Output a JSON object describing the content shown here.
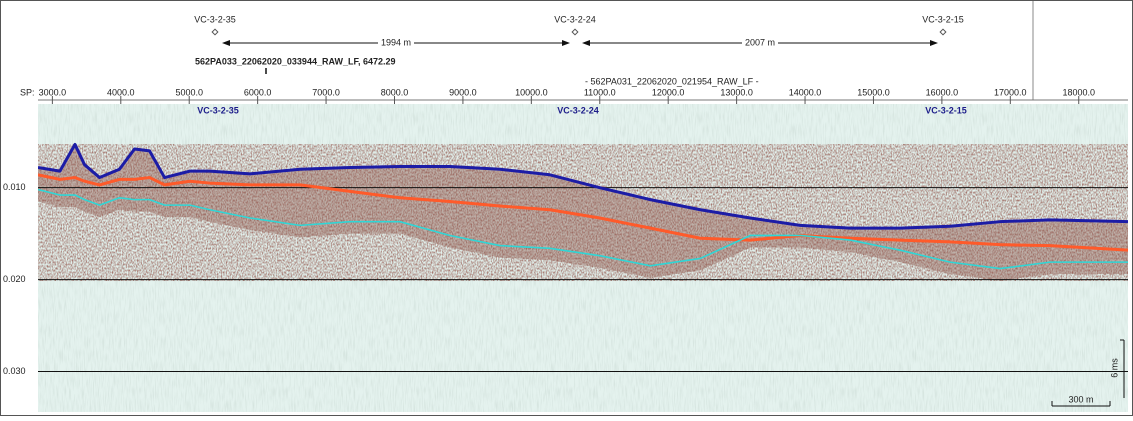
{
  "chart_data": {
    "type": "line",
    "x_label": "SP:",
    "x": [
      2790,
      3110,
      3330,
      3470,
      3690,
      3980,
      4200,
      4420,
      4640,
      5010,
      5300,
      5890,
      6620,
      7350,
      8080,
      8810,
      9540,
      10270,
      11000,
      11740,
      12470,
      13200,
      13930,
      14660,
      15390,
      16120,
      16850,
      17580,
      18720
    ],
    "series": [
      {
        "color": "#1c1ca6",
        "values": [
          0.0078,
          0.0082,
          0.0053,
          0.0075,
          0.0089,
          0.008,
          0.0058,
          0.006,
          0.0089,
          0.0082,
          0.0082,
          0.0085,
          0.008,
          0.0078,
          0.0077,
          0.0077,
          0.008,
          0.0086,
          0.01,
          0.0113,
          0.0124,
          0.0133,
          0.0141,
          0.0144,
          0.0144,
          0.0142,
          0.0137,
          0.0135,
          0.0137
        ]
      },
      {
        "color": "#ff5a2a",
        "values": [
          0.0086,
          0.0091,
          0.0089,
          0.0093,
          0.0097,
          0.0091,
          0.0091,
          0.0089,
          0.0097,
          0.0093,
          0.0095,
          0.0097,
          0.0097,
          0.0104,
          0.0111,
          0.0115,
          0.012,
          0.0124,
          0.0133,
          0.0144,
          0.0155,
          0.0157,
          0.0152,
          0.0155,
          0.0157,
          0.0159,
          0.0162,
          0.0163,
          0.0168
        ]
      },
      {
        "color": "#2fd6d6",
        "values": [
          0.0102,
          0.0108,
          0.0108,
          0.0113,
          0.0119,
          0.0111,
          0.0113,
          0.0113,
          0.0119,
          0.0119,
          0.0124,
          0.0133,
          0.0141,
          0.0137,
          0.0137,
          0.0152,
          0.0163,
          0.0166,
          0.0174,
          0.0185,
          0.0177,
          0.0152,
          0.0152,
          0.0157,
          0.0168,
          0.0181,
          0.0188,
          0.0181,
          0.0181
        ]
      }
    ],
    "xlim": [
      2790,
      18720
    ],
    "xticks": [
      {
        "value": 3000,
        "label": "3000.0"
      },
      {
        "value": 4000,
        "label": "4000.0"
      },
      {
        "value": 5000,
        "label": "5000.0"
      },
      {
        "value": 6000,
        "label": "6000.0"
      },
      {
        "value": 7000,
        "label": "7000.0"
      },
      {
        "value": 8000,
        "label": "8000.0"
      },
      {
        "value": 9000,
        "label": "9000.0"
      },
      {
        "value": 10000,
        "label": "10000.0"
      },
      {
        "value": 11000,
        "label": "11000.0"
      },
      {
        "value": 12000,
        "label": "12000.0"
      },
      {
        "value": 13000,
        "label": "13000.0"
      },
      {
        "value": 14000,
        "label": "14000.0"
      },
      {
        "value": 15000,
        "label": "15000.0"
      },
      {
        "value": 16000,
        "label": "16000.0"
      },
      {
        "value": 17000,
        "label": "17000.0"
      },
      {
        "value": 18000,
        "label": "18000.0"
      }
    ],
    "ylim": [
      0.0009,
      0.0344
    ],
    "y_inverted": true,
    "yticks": [
      {
        "value": 0.01,
        "label": "0.010"
      },
      {
        "value": 0.02,
        "label": "0.020"
      },
      {
        "value": 0.03,
        "label": "0.030"
      }
    ],
    "grid": true,
    "wells": [
      "VC-3-2-35",
      "VC-3-2-24",
      "VC-3-2-15"
    ],
    "distances": [
      "1994 m",
      "2007 m"
    ],
    "line_names": [
      "562PA033_22062020_033944_RAW_LF, 6472.29",
      "- 562PA031_22062020_021954_RAW_LF -"
    ],
    "scale_labels": [
      "6 ms",
      "300 m"
    ]
  }
}
